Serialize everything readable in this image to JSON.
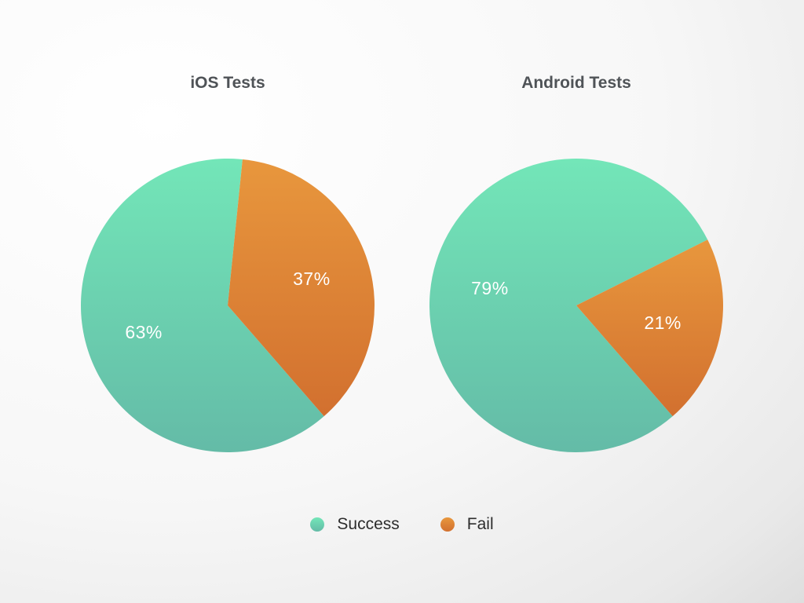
{
  "chart_data": [
    {
      "type": "pie",
      "title": "iOS Tests",
      "slices": [
        {
          "label": "Success",
          "value": 63,
          "display": "63%",
          "color_top": "#73e6b8",
          "color_bottom": "#64bba7"
        },
        {
          "label": "Fail",
          "value": 37,
          "display": "37%",
          "color_top": "#e8973d",
          "color_bottom": "#d2702f"
        }
      ]
    },
    {
      "type": "pie",
      "title": "Android Tests",
      "slices": [
        {
          "label": "Success",
          "value": 79,
          "display": "79%",
          "color_top": "#73e6b8",
          "color_bottom": "#64bba7"
        },
        {
          "label": "Fail",
          "value": 21,
          "display": "21%",
          "color_top": "#e8973d",
          "color_bottom": "#d2702f"
        }
      ]
    }
  ],
  "legend": {
    "items": [
      {
        "label": "Success",
        "color": "#6bd3b2"
      },
      {
        "label": "Fail",
        "color": "#de8437"
      }
    ],
    "placement": "bottom-center"
  }
}
